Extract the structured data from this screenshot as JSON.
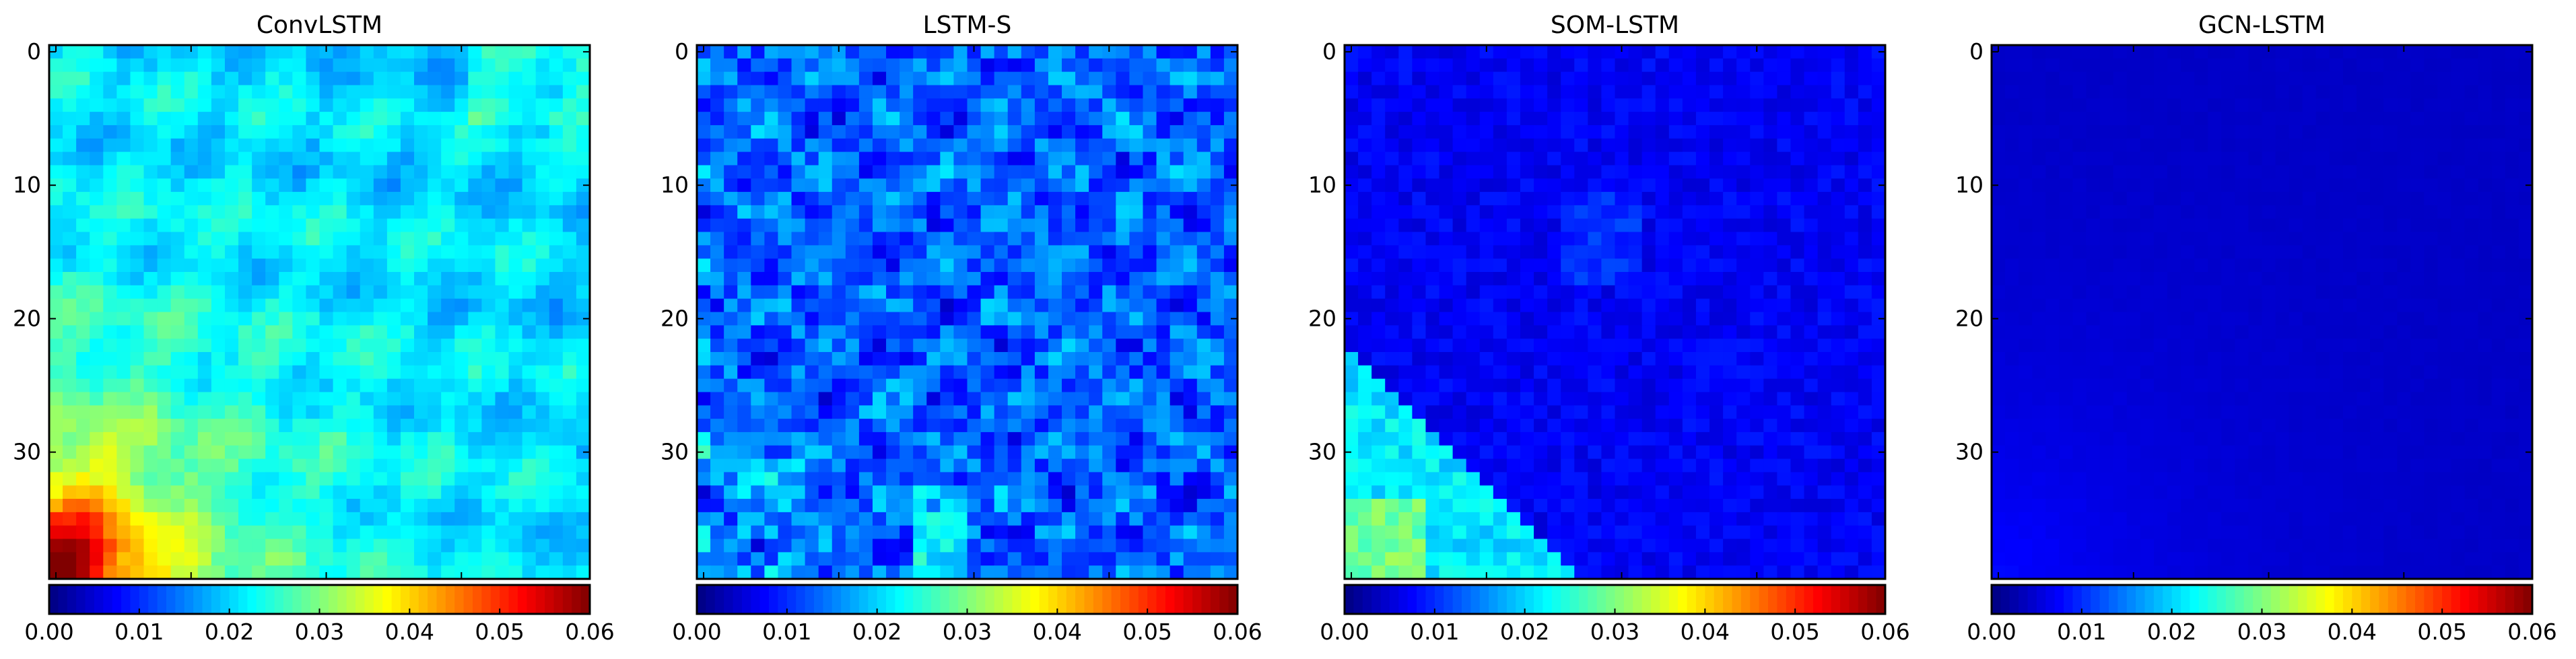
{
  "chart_data": [
    {
      "type": "heatmap",
      "title": "ConvLSTM",
      "grid_size": 40,
      "y_ticks": [
        "0",
        "10",
        "20",
        "30"
      ],
      "colorbar": {
        "colormap": "jet",
        "range": [
          0.0,
          0.06
        ],
        "ticks": [
          "0.00",
          "0.01",
          "0.02",
          "0.03",
          "0.04",
          "0.05",
          "0.06"
        ]
      },
      "pattern": "convlstm"
    },
    {
      "type": "heatmap",
      "title": "LSTM-S",
      "grid_size": 40,
      "y_ticks": [
        "0",
        "10",
        "20",
        "30"
      ],
      "colorbar": {
        "colormap": "jet",
        "range": [
          0.0,
          0.06
        ],
        "ticks": [
          "0.00",
          "0.01",
          "0.02",
          "0.03",
          "0.04",
          "0.05",
          "0.06"
        ]
      },
      "pattern": "lstms"
    },
    {
      "type": "heatmap",
      "title": "SOM-LSTM",
      "grid_size": 40,
      "y_ticks": [
        "0",
        "10",
        "20",
        "30"
      ],
      "colorbar": {
        "colormap": "jet",
        "range": [
          0.0,
          0.06
        ],
        "ticks": [
          "0.00",
          "0.01",
          "0.02",
          "0.03",
          "0.04",
          "0.05",
          "0.06"
        ]
      },
      "pattern": "somlstm"
    },
    {
      "type": "heatmap",
      "title": "GCN-LSTM",
      "grid_size": 40,
      "y_ticks": [
        "0",
        "10",
        "20",
        "30"
      ],
      "colorbar": {
        "colormap": "jet",
        "range": [
          0.0,
          0.06
        ],
        "ticks": [
          "0.00",
          "0.01",
          "0.02",
          "0.03",
          "0.04",
          "0.05",
          "0.06"
        ]
      },
      "pattern": "gcnlstm"
    }
  ]
}
